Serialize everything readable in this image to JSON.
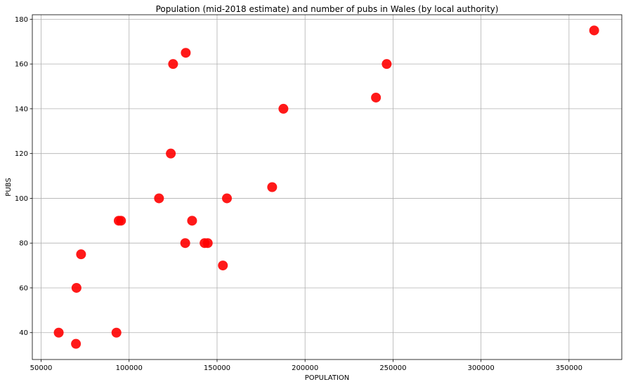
{
  "chart_data": {
    "type": "scatter",
    "title": "Population (mid-2018 estimate) and number of pubs in Wales (by local authority)",
    "xlabel": "POPULATION",
    "ylabel": "PUBS",
    "xlim": [
      45000,
      380000
    ],
    "ylim": [
      28,
      182
    ],
    "xticks": [
      50000,
      100000,
      150000,
      200000,
      250000,
      300000,
      350000
    ],
    "xtick_labels": [
      "50000",
      "100000",
      "150000",
      "200000",
      "250000",
      "300000",
      "350000"
    ],
    "yticks": [
      40,
      60,
      80,
      100,
      120,
      140,
      160,
      180
    ],
    "ytick_labels": [
      "40",
      "60",
      "80",
      "100",
      "120",
      "140",
      "160",
      "180"
    ],
    "grid": true,
    "marker_color": "#ff0000",
    "points": [
      {
        "x": 60000,
        "y": 40
      },
      {
        "x": 69800,
        "y": 35
      },
      {
        "x": 70100,
        "y": 60
      },
      {
        "x": 72700,
        "y": 75
      },
      {
        "x": 92800,
        "y": 40
      },
      {
        "x": 94100,
        "y": 90
      },
      {
        "x": 95400,
        "y": 90
      },
      {
        "x": 117000,
        "y": 100
      },
      {
        "x": 123700,
        "y": 120
      },
      {
        "x": 125000,
        "y": 160
      },
      {
        "x": 131900,
        "y": 80
      },
      {
        "x": 132200,
        "y": 165
      },
      {
        "x": 135800,
        "y": 90
      },
      {
        "x": 142900,
        "y": 80
      },
      {
        "x": 144700,
        "y": 80
      },
      {
        "x": 153300,
        "y": 70
      },
      {
        "x": 155600,
        "y": 100
      },
      {
        "x": 181300,
        "y": 105
      },
      {
        "x": 187700,
        "y": 140
      },
      {
        "x": 240300,
        "y": 145
      },
      {
        "x": 246400,
        "y": 160
      },
      {
        "x": 364300,
        "y": 175
      }
    ]
  }
}
